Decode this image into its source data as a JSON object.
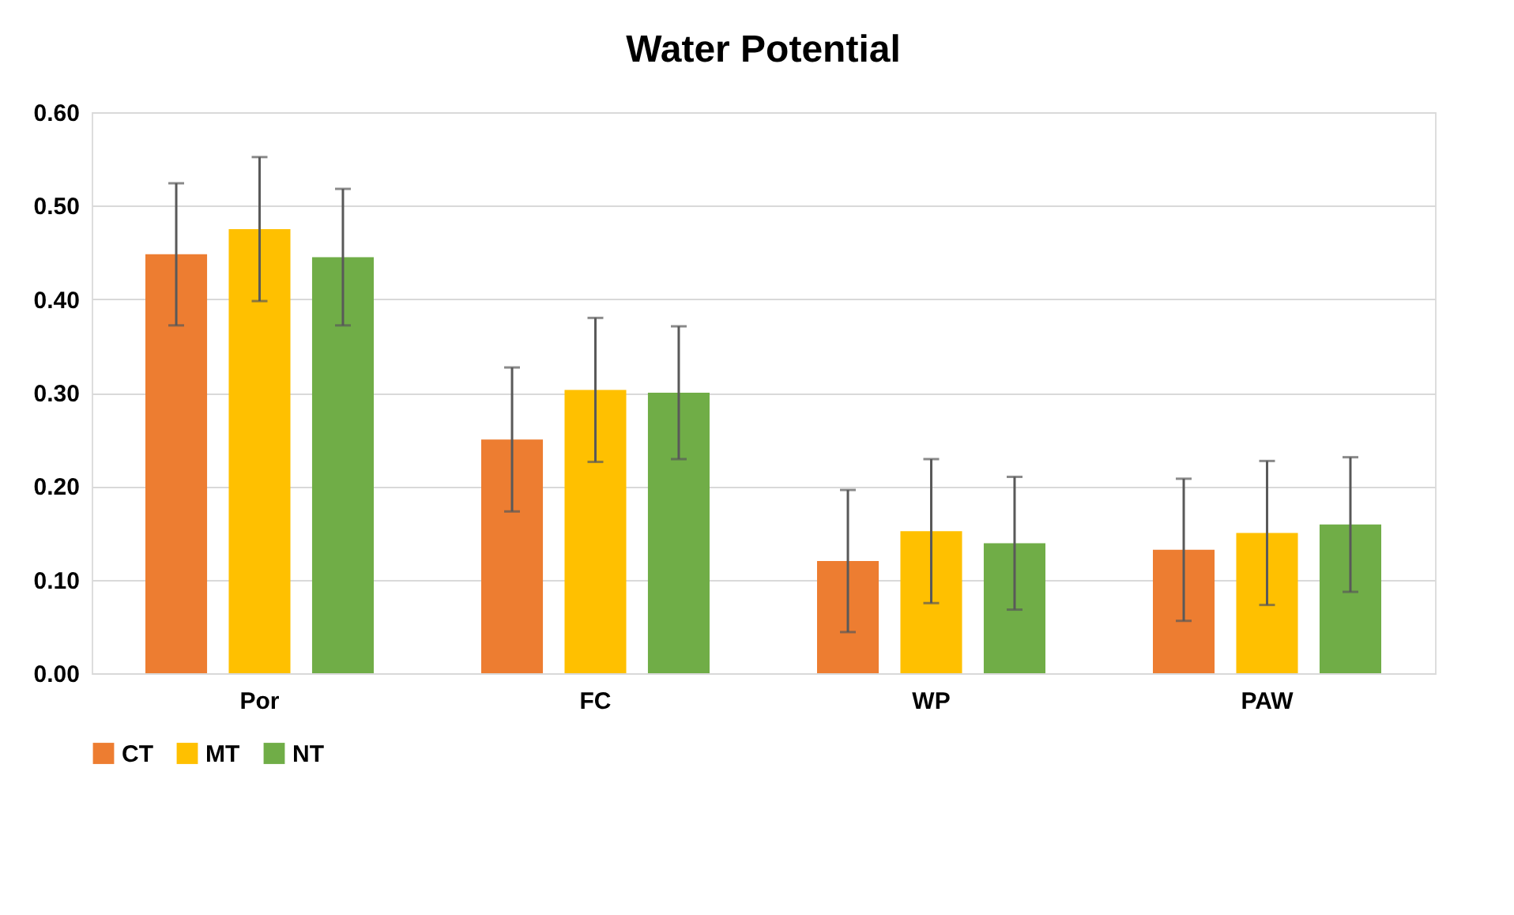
{
  "chart_data": {
    "type": "bar",
    "title": "Water Potential",
    "categories": [
      "Por",
      "FC",
      "WP",
      "PAW"
    ],
    "series": [
      {
        "name": "CT",
        "color": "#ed7d31",
        "values": [
          0.448,
          0.25,
          0.12,
          0.132
        ],
        "errors": [
          0.076,
          0.077,
          0.076,
          0.076
        ]
      },
      {
        "name": "MT",
        "color": "#ffc000",
        "values": [
          0.475,
          0.303,
          0.152,
          0.15
        ],
        "errors": [
          0.077,
          0.077,
          0.077,
          0.077
        ]
      },
      {
        "name": "NT",
        "color": "#70ad47",
        "values": [
          0.445,
          0.3,
          0.139,
          0.159
        ],
        "errors": [
          0.073,
          0.071,
          0.071,
          0.072
        ]
      }
    ],
    "ylim": [
      0,
      0.6
    ],
    "yticks": [
      {
        "value": 0,
        "label": "0.00"
      },
      {
        "value": 0.1,
        "label": "0.10"
      },
      {
        "value": 0.2,
        "label": "0.20"
      },
      {
        "value": 0.3,
        "label": "0.30"
      },
      {
        "value": 0.4,
        "label": "0.40"
      },
      {
        "value": 0.5,
        "label": "0.50"
      },
      {
        "value": 0.6,
        "label": "0.60"
      }
    ],
    "grid": "y",
    "legend": "bottom"
  }
}
